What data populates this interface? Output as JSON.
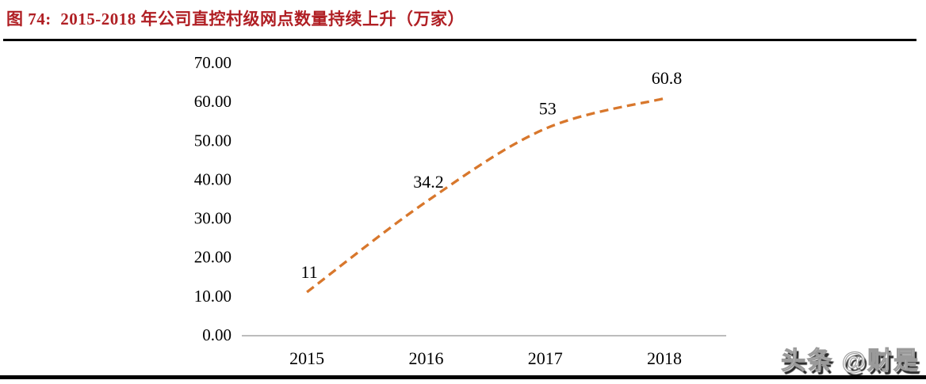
{
  "header": {
    "title": "图 74:  2015-2018 年公司直控村级网点数量持续上升（万家）"
  },
  "footer": {
    "watermark": "头条 @财是"
  },
  "chart_data": {
    "type": "line",
    "line_style": "dashed",
    "smooth": true,
    "title": "图 74: 2015-2018 年公司直控村级网点数量持续上升（万家）",
    "unit": "万家",
    "categories": [
      "2015",
      "2016",
      "2017",
      "2018"
    ],
    "values": [
      11,
      34.2,
      53,
      60.8
    ],
    "data_labels": [
      "11",
      "34.2",
      "53",
      "60.8"
    ],
    "y_tick_labels": [
      "70.00",
      "60.00",
      "50.00",
      "40.00",
      "30.00",
      "20.00",
      "10.00",
      "0.00"
    ],
    "ylim": [
      0,
      70
    ],
    "xlabel": "",
    "ylabel": "",
    "grid": false,
    "legend": "none",
    "markers": "none",
    "colors": {
      "line": "#D8772C",
      "axis": "#A6A6A6",
      "title": "#B01F24",
      "text": "#000000"
    }
  }
}
